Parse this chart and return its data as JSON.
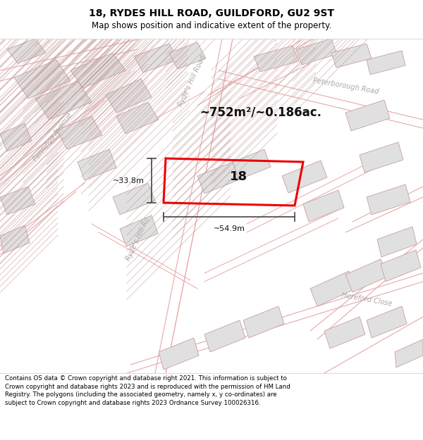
{
  "title_line1": "18, RYDES HILL ROAD, GUILDFORD, GU2 9ST",
  "title_line2": "Map shows position and indicative extent of the property.",
  "footer_text": "Contains OS data © Crown copyright and database right 2021. This information is subject to Crown copyright and database rights 2023 and is reproduced with the permission of HM Land Registry. The polygons (including the associated geometry, namely x, y co-ordinates) are subject to Crown copyright and database rights 2023 Ordnance Survey 100026316.",
  "area_text": "~752m²/~0.186ac.",
  "property_number": "18",
  "dim_width": "~54.9m",
  "dim_height": "~33.8m",
  "map_bg": "#f7f7f7",
  "road_color": "#e8a0a0",
  "highlight_color": "#ee0000",
  "road_label1": "Ryde's Hill Road",
  "road_label2": "Peterborough Road",
  "road_label3": "Pennings Avenue",
  "road_label4": "Hereford Close"
}
